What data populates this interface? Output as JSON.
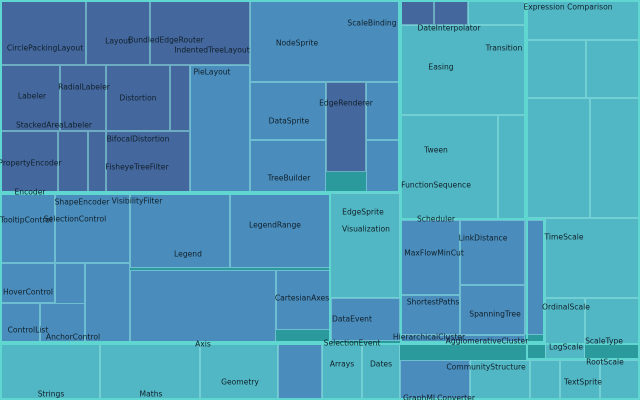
{
  "chart_data": {
    "type": "treemap",
    "title": "",
    "colors": {
      "cell_dark": "#44679e",
      "cell_mid": "#4a8cbc",
      "cell_light": "#52b7c4",
      "group_border": "#5fd6d0"
    },
    "groups": [
      {
        "name": "layout-and-data",
        "shade": "mid"
      },
      {
        "name": "controls-legend-axis",
        "shade": "mid"
      },
      {
        "name": "animate",
        "shade": "light"
      },
      {
        "name": "analytics",
        "shade": "mid"
      },
      {
        "name": "scale",
        "shade": "light"
      },
      {
        "name": "util",
        "shade": "light"
      }
    ],
    "labels": [
      "CirclePackingLayout",
      "Layout",
      "BundledEdgeRouter",
      "IndentedTreeLayout",
      "NodeSprite",
      "ScaleBinding",
      "DateInterpolator",
      "Transition",
      "Expression Comparison",
      "Easing",
      "PieLayout",
      "RadialLabeler",
      "Labeler",
      "Distortion",
      "EdgeRenderer",
      "DataSprite",
      "StackedAreaLabeler",
      "BifocalDistortion",
      "Tween",
      "PropertyEncoder",
      "FisheyeTreeFilter",
      "TreeBuilder",
      "FunctionSequence",
      "Encoder",
      "ShapeEncoder",
      "VisibilityFilter",
      "EdgeSprite",
      "TooltipControl",
      "SelectionControl",
      "Scheduler",
      "LegendRange",
      "Visualization",
      "TimeScale",
      "LinkDistance",
      "MaxFlowMinCut",
      "Legend",
      "HoverControl",
      "CartesianAxes",
      "OrdinalScale",
      "ShortestPaths",
      "SpanningTree",
      "DataEvent",
      "ControlList",
      "HierarchicalCluster",
      "AnchorControl",
      "AgglomerativeCluster",
      "ScaleType",
      "LogScale",
      "Axis",
      "SelectionEvent",
      "RootScale",
      "Arrays",
      "Dates",
      "Geometry",
      "CommunityStructure",
      "Strings",
      "Maths",
      "TextSprite",
      "GraphMLConverter"
    ]
  }
}
